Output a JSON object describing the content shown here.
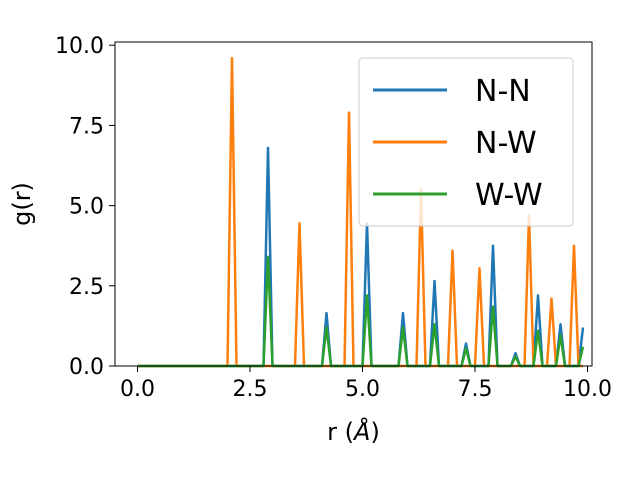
{
  "chart_data": {
    "type": "line",
    "title": "",
    "xlabel_main": "r (",
    "xlabel_unit": "Å",
    "xlabel_end": ")",
    "ylabel": "g(r)",
    "xlim": [
      -0.5,
      10.1
    ],
    "ylim": [
      0,
      10.1
    ],
    "xticks": [
      0.0,
      2.5,
      5.0,
      7.5,
      10.0
    ],
    "xtick_labels": [
      "0.0",
      "2.5",
      "5.0",
      "7.5",
      "10.0"
    ],
    "yticks": [
      0.0,
      2.5,
      5.0,
      7.5,
      10.0
    ],
    "ytick_labels": [
      "0.0",
      "2.5",
      "5.0",
      "7.5",
      "10.0"
    ],
    "grid": false,
    "legend_position": "top-right",
    "x_range": [
      0.0,
      9.9
    ],
    "x_step": 0.1,
    "series": [
      {
        "name": "N-N",
        "color": "#1f77b4",
        "peaks": [
          {
            "x": 2.9,
            "y": 6.8
          },
          {
            "x": 4.2,
            "y": 1.65
          },
          {
            "x": 5.1,
            "y": 4.45
          },
          {
            "x": 5.9,
            "y": 1.65
          },
          {
            "x": 6.6,
            "y": 2.65
          },
          {
            "x": 7.3,
            "y": 0.7
          },
          {
            "x": 7.9,
            "y": 3.75
          },
          {
            "x": 8.4,
            "y": 0.4
          },
          {
            "x": 8.9,
            "y": 2.2
          },
          {
            "x": 9.4,
            "y": 1.3
          },
          {
            "x": 9.9,
            "y": 1.2
          }
        ]
      },
      {
        "name": "N-W",
        "color": "#ff7f0e",
        "peaks": [
          {
            "x": 2.1,
            "y": 9.6
          },
          {
            "x": 3.6,
            "y": 4.45
          },
          {
            "x": 4.7,
            "y": 7.9
          },
          {
            "x": 6.3,
            "y": 5.5
          },
          {
            "x": 7.0,
            "y": 3.6
          },
          {
            "x": 7.6,
            "y": 3.05
          },
          {
            "x": 8.7,
            "y": 4.7
          },
          {
            "x": 9.2,
            "y": 2.1
          },
          {
            "x": 9.7,
            "y": 3.75
          }
        ]
      },
      {
        "name": "W-W",
        "color": "#2ca02c",
        "peaks": [
          {
            "x": 2.9,
            "y": 3.4
          },
          {
            "x": 4.2,
            "y": 1.2
          },
          {
            "x": 5.1,
            "y": 2.2
          },
          {
            "x": 5.9,
            "y": 1.2
          },
          {
            "x": 6.6,
            "y": 1.3
          },
          {
            "x": 7.3,
            "y": 0.55
          },
          {
            "x": 7.9,
            "y": 1.85
          },
          {
            "x": 8.4,
            "y": 0.3
          },
          {
            "x": 8.9,
            "y": 1.1
          },
          {
            "x": 9.4,
            "y": 0.95
          },
          {
            "x": 9.9,
            "y": 0.6
          }
        ]
      }
    ]
  }
}
